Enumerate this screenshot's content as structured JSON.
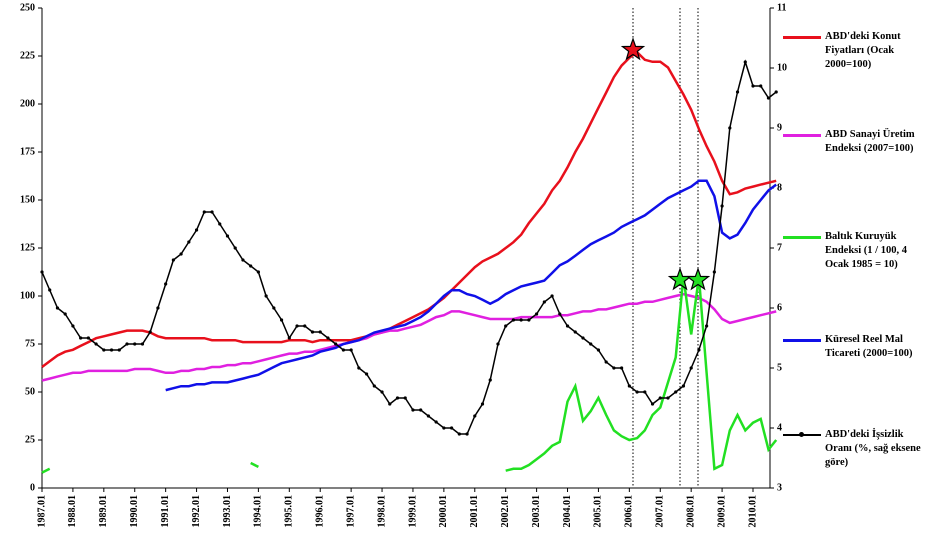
{
  "chart_data": {
    "type": "line",
    "categories": [
      "1987.01",
      null,
      null,
      null,
      "1988.01",
      null,
      null,
      null,
      "1989.01",
      null,
      null,
      null,
      "1990.01",
      null,
      null,
      null,
      "1991.01",
      null,
      null,
      null,
      "1992.01",
      null,
      null,
      null,
      "1993.01",
      null,
      null,
      null,
      "1994.01",
      null,
      null,
      null,
      "1995.01",
      null,
      null,
      null,
      "1996.01",
      null,
      null,
      null,
      "1997.01",
      null,
      null,
      null,
      "1998.01",
      null,
      null,
      null,
      "1999.01",
      null,
      null,
      null,
      "2000.01",
      null,
      null,
      null,
      "2001.01",
      null,
      null,
      null,
      "2002.01",
      null,
      null,
      null,
      "2003.01",
      null,
      null,
      null,
      "2004.01",
      null,
      null,
      null,
      "2005.01",
      null,
      null,
      null,
      "2006.01",
      null,
      null,
      null,
      "2007.01",
      null,
      null,
      null,
      "2008.01",
      null,
      null,
      null,
      "2009.01",
      null,
      null,
      null,
      "2010.01",
      null,
      null,
      null
    ],
    "series": [
      {
        "name": "ABD'deki Konut Fiyatları (Ocak 2000=100)",
        "color": "#e8101c",
        "values": [
          63,
          66,
          69,
          71,
          72,
          74,
          76,
          78,
          79,
          80,
          81,
          82,
          82,
          82,
          81,
          79,
          78,
          78,
          78,
          78,
          78,
          78,
          77,
          77,
          77,
          77,
          76,
          76,
          76,
          76,
          76,
          76,
          77,
          77,
          77,
          76,
          77,
          77,
          77,
          77,
          77,
          78,
          79,
          80,
          81,
          83,
          85,
          87,
          89,
          91,
          93,
          96,
          99,
          103,
          107,
          111,
          115,
          118,
          120,
          122,
          125,
          128,
          132,
          138,
          143,
          148,
          155,
          160,
          167,
          175,
          182,
          190,
          198,
          206,
          214,
          220,
          224,
          227,
          223,
          222,
          222,
          219,
          212,
          205,
          197,
          187,
          178,
          170,
          160,
          153,
          154,
          156,
          157,
          158,
          159,
          160
        ]
      },
      {
        "name": "ABD Sanayi Üretim Endeksi (2007=100)",
        "color": "#e020e0",
        "values": [
          56,
          57,
          58,
          59,
          60,
          60,
          61,
          61,
          61,
          61,
          61,
          61,
          62,
          62,
          62,
          61,
          60,
          60,
          61,
          61,
          62,
          62,
          63,
          63,
          64,
          64,
          65,
          65,
          66,
          67,
          68,
          69,
          70,
          70,
          71,
          71,
          72,
          73,
          74,
          75,
          76,
          77,
          78,
          80,
          81,
          82,
          82,
          83,
          84,
          85,
          87,
          89,
          90,
          92,
          92,
          91,
          90,
          89,
          88,
          88,
          88,
          88,
          89,
          89,
          89,
          89,
          89,
          90,
          90,
          91,
          92,
          92,
          93,
          93,
          94,
          95,
          96,
          96,
          97,
          97,
          98,
          99,
          100,
          101,
          100,
          99,
          97,
          93,
          88,
          86,
          87,
          88,
          89,
          90,
          91,
          92
        ]
      },
      {
        "name": "Baltık Kuruyük Endeksi (1 / 100, 4 Ocak 1985 = 10)",
        "color": "#22e022",
        "values": [
          8,
          10,
          null,
          null,
          null,
          null,
          null,
          null,
          null,
          null,
          null,
          null,
          null,
          null,
          null,
          null,
          null,
          null,
          null,
          null,
          null,
          null,
          null,
          null,
          null,
          null,
          null,
          13,
          11,
          null,
          null,
          null,
          null,
          null,
          null,
          null,
          null,
          null,
          null,
          null,
          null,
          null,
          null,
          null,
          null,
          null,
          null,
          null,
          null,
          null,
          null,
          null,
          null,
          null,
          null,
          null,
          null,
          null,
          null,
          null,
          9,
          10,
          10,
          12,
          15,
          18,
          22,
          24,
          45,
          53,
          35,
          40,
          47,
          38,
          30,
          27,
          25,
          26,
          30,
          38,
          42,
          55,
          68,
          110,
          80,
          110,
          60,
          10,
          12,
          30,
          38,
          30,
          34,
          36,
          20,
          25
        ]
      },
      {
        "name": "Küresel Reel Mal Ticareti (2000=100)",
        "color": "#1010e8",
        "values": [
          null,
          null,
          null,
          null,
          null,
          null,
          null,
          null,
          null,
          null,
          null,
          null,
          null,
          null,
          null,
          null,
          51,
          52,
          53,
          53,
          54,
          54,
          55,
          55,
          55,
          56,
          57,
          58,
          59,
          61,
          63,
          65,
          66,
          67,
          68,
          69,
          71,
          72,
          73,
          75,
          76,
          77,
          79,
          81,
          82,
          83,
          84,
          85,
          87,
          89,
          92,
          96,
          100,
          103,
          103,
          101,
          100,
          98,
          96,
          98,
          101,
          103,
          105,
          106,
          107,
          108,
          112,
          116,
          118,
          121,
          124,
          127,
          129,
          131,
          133,
          136,
          138,
          140,
          142,
          145,
          148,
          151,
          153,
          155,
          157,
          160,
          160,
          152,
          133,
          130,
          132,
          138,
          145,
          150,
          155,
          158
        ]
      },
      {
        "name": "ABD'deki İşsizlik Oranı (%, sağ eksene göre)",
        "color": "#000000",
        "axis": "y2",
        "values": [
          6.6,
          6.3,
          6.0,
          5.9,
          5.7,
          5.5,
          5.5,
          5.4,
          5.3,
          5.3,
          5.3,
          5.4,
          5.4,
          5.4,
          5.6,
          6.0,
          6.4,
          6.8,
          6.9,
          7.1,
          7.3,
          7.6,
          7.6,
          7.4,
          7.2,
          7.0,
          6.8,
          6.7,
          6.6,
          6.2,
          6.0,
          5.8,
          5.5,
          5.7,
          5.7,
          5.6,
          5.6,
          5.5,
          5.4,
          5.3,
          5.3,
          5.0,
          4.9,
          4.7,
          4.6,
          4.4,
          4.5,
          4.5,
          4.3,
          4.3,
          4.2,
          4.1,
          4.0,
          4.0,
          3.9,
          3.9,
          4.2,
          4.4,
          4.8,
          5.4,
          5.7,
          5.8,
          5.8,
          5.8,
          5.9,
          6.1,
          6.2,
          5.9,
          5.7,
          5.6,
          5.5,
          5.4,
          5.3,
          5.1,
          5.0,
          5.0,
          4.7,
          4.6,
          4.6,
          4.4,
          4.5,
          4.5,
          4.6,
          4.7,
          5.0,
          5.3,
          5.7,
          6.6,
          7.7,
          9.0,
          9.6,
          10.1,
          9.7,
          9.7,
          9.5,
          9.6
        ]
      }
    ],
    "ylim": [
      0,
      250
    ],
    "yticks": [
      0,
      25,
      50,
      75,
      100,
      125,
      150,
      175,
      200,
      225,
      250
    ],
    "y2lim": [
      3,
      11
    ],
    "y2ticks": [
      3,
      4,
      5,
      6,
      7,
      8,
      9,
      10,
      11
    ],
    "grid": false,
    "legend": "right"
  }
}
